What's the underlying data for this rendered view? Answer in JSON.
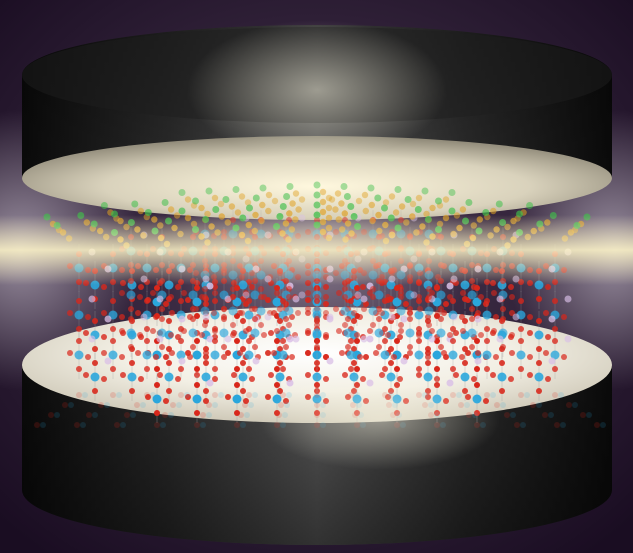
{
  "image": {
    "subject": "cylinder-cavity-with-crystal-lattice",
    "colors": {
      "background": "#1c0f24",
      "background_glow": "#6b5a73",
      "cylinder_dark": "#151515",
      "cylinder_highlight": "#6e6e6e",
      "disc_light": "#f4efe0",
      "light_beam": "#fff6c8",
      "atom_green": "#3fbf4a",
      "atom_orange": "#e0a020",
      "atom_red": "#d8271b",
      "atom_blue": "#2aa6dc",
      "atom_lilac": "#d9bfe6",
      "bond_gray": "#9a9a9a"
    }
  }
}
